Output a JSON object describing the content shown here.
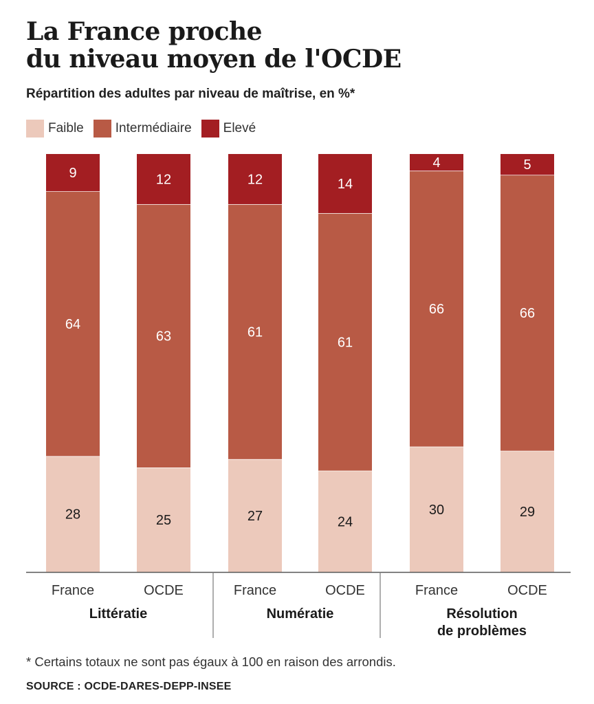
{
  "title_line1": "La France proche",
  "title_line2": "du niveau moyen de l'OCDE",
  "subtitle": "Répartition des adultes par niveau de maîtrise, en %*",
  "legend": [
    {
      "label": "Faible",
      "color": "#ecc9bb"
    },
    {
      "label": "Intermédiaire",
      "color": "#b85a45"
    },
    {
      "label": "Elevé",
      "color": "#a31e22"
    }
  ],
  "footnote": "* Certains totaux ne sont pas égaux à 100 en raison des arrondis.",
  "source": "SOURCE : OCDE-DARES-DEPP-INSEE",
  "chart_data": {
    "type": "bar",
    "stacked": true,
    "unit": "%",
    "categories": [
      "France",
      "OCDE",
      "France",
      "OCDE",
      "France",
      "OCDE"
    ],
    "groups": [
      {
        "label_lines": [
          "Littératie"
        ],
        "members": [
          0,
          1
        ]
      },
      {
        "label_lines": [
          "Numératie"
        ],
        "members": [
          2,
          3
        ]
      },
      {
        "label_lines": [
          "Résolution",
          "de problèmes"
        ],
        "members": [
          4,
          5
        ]
      }
    ],
    "series": [
      {
        "name": "Faible",
        "color": "#ecc9bb",
        "values": [
          28,
          25,
          27,
          24,
          30,
          29
        ]
      },
      {
        "name": "Intermédiaire",
        "color": "#b85a45",
        "values": [
          64,
          63,
          61,
          61,
          66,
          66
        ]
      },
      {
        "name": "Elevé",
        "color": "#a31e22",
        "values": [
          9,
          12,
          12,
          14,
          4,
          5
        ]
      }
    ],
    "ylim": [
      0,
      100
    ]
  }
}
